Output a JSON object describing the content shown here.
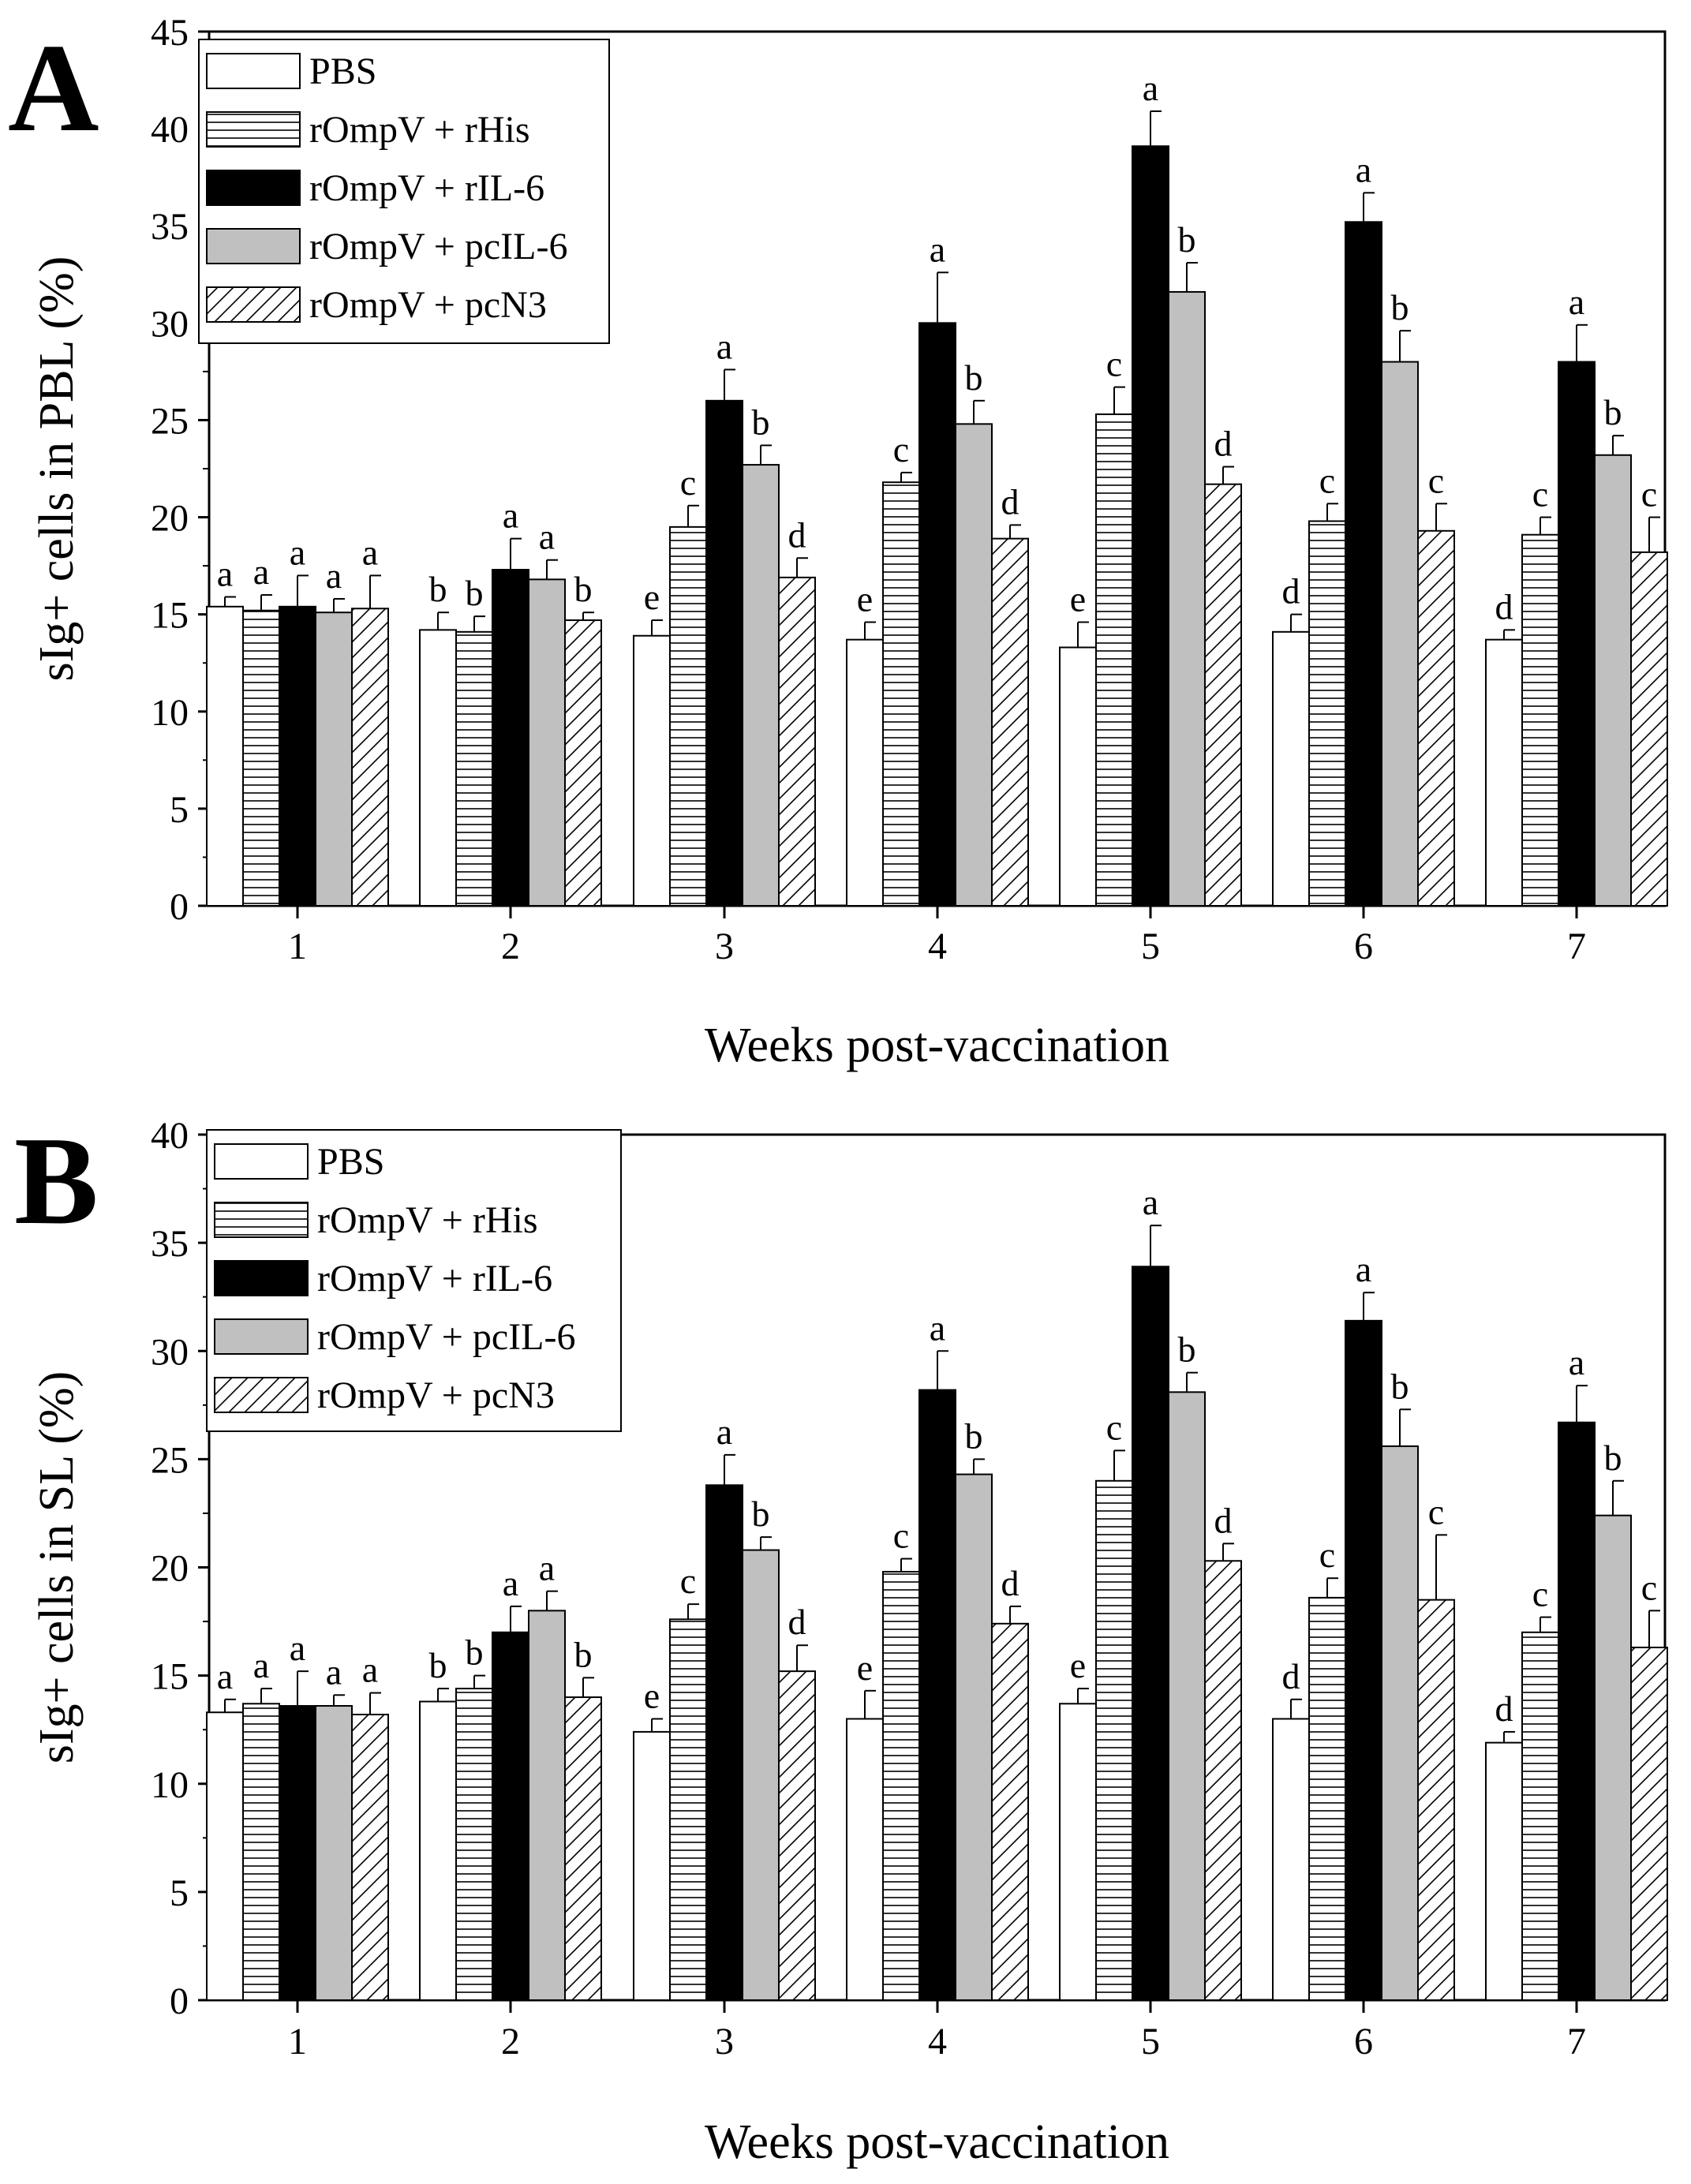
{
  "legend": [
    "PBS",
    "rOmpV + rHis",
    "rOmpV + rIL-6",
    "rOmpV + pcIL-6",
    "rOmpV + pcN3"
  ],
  "chart_data": [
    {
      "panel": "A",
      "type": "bar",
      "xlabel": "Weeks post-vaccination",
      "ylabel": "sIg+ cells in PBL (%)",
      "ylim": [
        0,
        45
      ],
      "yticks": [
        0,
        5,
        10,
        15,
        20,
        25,
        30,
        35,
        40,
        45
      ],
      "categories": [
        "1",
        "2",
        "3",
        "4",
        "5",
        "6",
        "7"
      ],
      "series": [
        {
          "name": "PBS",
          "values": [
            15.4,
            14.2,
            13.9,
            13.7,
            13.3,
            14.1,
            13.7
          ],
          "errors": [
            0.5,
            0.9,
            0.8,
            0.9,
            1.3,
            0.9,
            0.5
          ],
          "letters": [
            "a",
            "b",
            "e",
            "e",
            "e",
            "d",
            "d"
          ]
        },
        {
          "name": "rOmpV + rHis",
          "values": [
            15.2,
            14.1,
            19.5,
            21.8,
            25.3,
            19.8,
            19.1
          ],
          "errors": [
            0.8,
            0.8,
            1.1,
            0.5,
            1.4,
            0.9,
            0.9
          ],
          "letters": [
            "a",
            "b",
            "c",
            "c",
            "c",
            "c",
            "c"
          ]
        },
        {
          "name": "rOmpV + rIL-6",
          "values": [
            15.4,
            17.3,
            26.0,
            30.0,
            39.1,
            35.2,
            28.0
          ],
          "errors": [
            1.6,
            1.6,
            1.6,
            2.6,
            1.8,
            1.5,
            1.9
          ],
          "letters": [
            "a",
            "a",
            "a",
            "a",
            "a",
            "a",
            "a"
          ]
        },
        {
          "name": "rOmpV + pcIL-6",
          "values": [
            15.1,
            16.8,
            22.7,
            24.8,
            31.6,
            28.0,
            23.2
          ],
          "errors": [
            0.7,
            1.0,
            1.0,
            1.2,
            1.5,
            1.6,
            1.0
          ],
          "letters": [
            "a",
            "a",
            "b",
            "b",
            "b",
            "b",
            "b"
          ]
        },
        {
          "name": "rOmpV + pcN3",
          "values": [
            15.3,
            14.7,
            16.9,
            18.9,
            21.7,
            19.3,
            18.2
          ],
          "errors": [
            1.7,
            0.4,
            1.0,
            0.7,
            0.9,
            1.4,
            1.8
          ],
          "letters": [
            "a",
            "b",
            "d",
            "d",
            "d",
            "c",
            "c"
          ]
        }
      ]
    },
    {
      "panel": "B",
      "type": "bar",
      "xlabel": "Weeks post-vaccination",
      "ylabel": "sIg+ cells in SL (%)",
      "ylim": [
        0,
        40
      ],
      "yticks": [
        0,
        5,
        10,
        15,
        20,
        25,
        30,
        35,
        40
      ],
      "categories": [
        "1",
        "2",
        "3",
        "4",
        "5",
        "6",
        "7"
      ],
      "series": [
        {
          "name": "PBS",
          "values": [
            13.3,
            13.8,
            12.4,
            13.0,
            13.7,
            13.0,
            11.9
          ],
          "errors": [
            0.6,
            0.6,
            0.6,
            1.3,
            0.7,
            0.9,
            0.5
          ],
          "letters": [
            "a",
            "b",
            "e",
            "e",
            "e",
            "d",
            "d"
          ]
        },
        {
          "name": "rOmpV + rHis",
          "values": [
            13.7,
            14.4,
            17.6,
            19.8,
            24.0,
            18.6,
            17.0
          ],
          "errors": [
            0.7,
            0.6,
            0.7,
            0.6,
            1.4,
            0.9,
            0.7
          ],
          "letters": [
            "a",
            "b",
            "c",
            "c",
            "c",
            "c",
            "c"
          ]
        },
        {
          "name": "rOmpV + rIL-6",
          "values": [
            13.6,
            17.0,
            23.8,
            28.2,
            33.9,
            31.4,
            26.7
          ],
          "errors": [
            1.6,
            1.2,
            1.4,
            1.8,
            1.9,
            1.3,
            1.7
          ],
          "letters": [
            "a",
            "a",
            "a",
            "a",
            "a",
            "a",
            "a"
          ]
        },
        {
          "name": "rOmpV + pcIL-6",
          "values": [
            13.6,
            18.0,
            20.8,
            24.3,
            28.1,
            25.6,
            22.4
          ],
          "errors": [
            0.5,
            0.9,
            0.6,
            0.7,
            0.9,
            1.7,
            1.6
          ],
          "letters": [
            "a",
            "a",
            "b",
            "b",
            "b",
            "b",
            "b"
          ]
        },
        {
          "name": "rOmpV + pcN3",
          "values": [
            13.2,
            14.0,
            15.2,
            17.4,
            20.3,
            18.5,
            16.3
          ],
          "errors": [
            1.0,
            0.9,
            1.2,
            0.8,
            0.8,
            3.0,
            1.7
          ],
          "letters": [
            "a",
            "b",
            "d",
            "d",
            "d",
            "c",
            "c"
          ]
        }
      ]
    }
  ]
}
